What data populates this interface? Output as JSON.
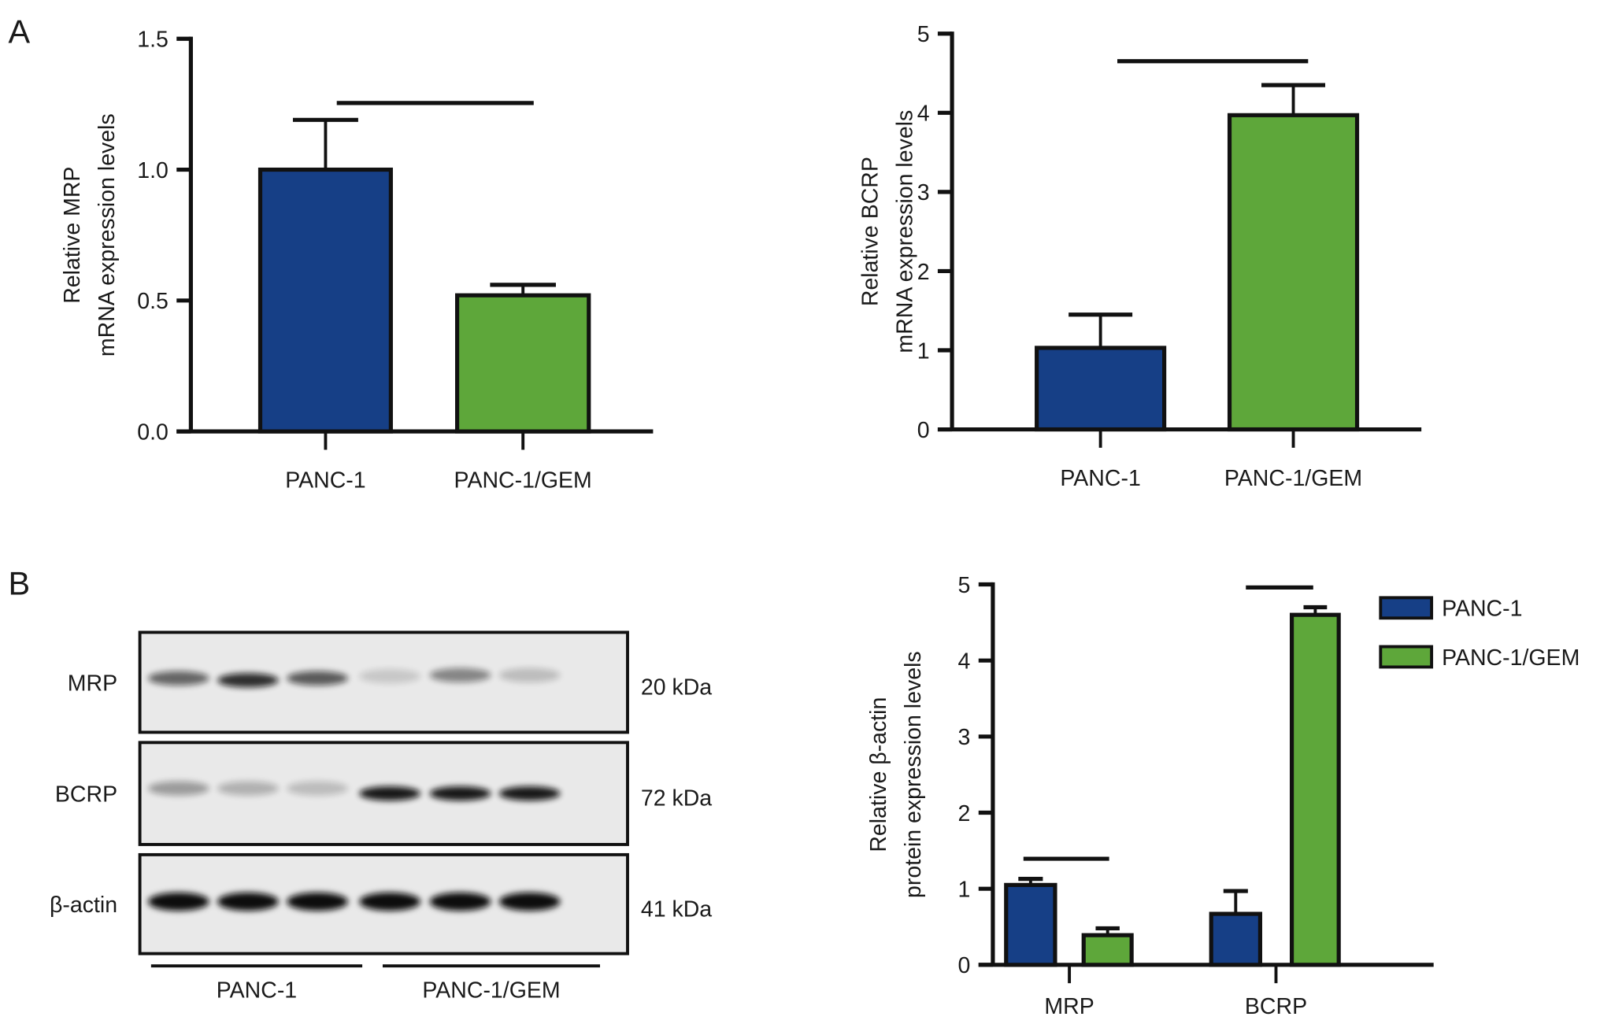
{
  "panel_labels": {
    "a": "A",
    "b": "B"
  },
  "colors": {
    "panc1": "#163f86",
    "gem": "#5ea73a",
    "axis": "#111111"
  },
  "chart_data": [
    {
      "type": "bar",
      "ylabel": [
        "Relative MRP",
        "mRNA expression levels"
      ],
      "categories": [
        "PANC-1",
        "PANC-1/GEM"
      ],
      "values": [
        1.0,
        0.52
      ],
      "error_upper": [
        1.19,
        0.56
      ],
      "yticks": [
        "0.0",
        "0.5",
        "1.0",
        "1.5"
      ],
      "ytick_values": [
        0,
        0.5,
        1.0,
        1.5
      ],
      "ylim": [
        0,
        1.5
      ],
      "significance": [
        {
          "label": "*",
          "between": [
            0,
            1
          ]
        }
      ],
      "grid": false
    },
    {
      "type": "bar",
      "ylabel": [
        "Relative BCRP",
        "mRNA expression levels"
      ],
      "categories": [
        "PANC-1",
        "PANC-1/GEM"
      ],
      "values": [
        1.03,
        3.97
      ],
      "error_upper": [
        1.45,
        4.35
      ],
      "yticks": [
        "0",
        "1",
        "2",
        "3",
        "4",
        "5"
      ],
      "ytick_values": [
        0,
        1,
        2,
        3,
        4,
        5
      ],
      "ylim": [
        0,
        5
      ],
      "significance": [
        {
          "label": "*",
          "between": [
            0,
            1
          ]
        }
      ],
      "grid": false
    },
    {
      "type": "bar",
      "ylabel": [
        "Relative β-actin",
        "protein expression levels"
      ],
      "categories": [
        "MRP",
        "BCRP"
      ],
      "series": [
        {
          "name": "PANC-1",
          "values": [
            1.05,
            0.67
          ],
          "error_upper": [
            1.13,
            0.97
          ]
        },
        {
          "name": "PANC-1/GEM",
          "values": [
            0.39,
            4.6
          ],
          "error_upper": [
            0.48,
            4.7
          ]
        }
      ],
      "yticks": [
        "0",
        "1",
        "2",
        "3",
        "4",
        "5"
      ],
      "ytick_values": [
        0,
        1,
        2,
        3,
        4,
        5
      ],
      "ylim": [
        0,
        5
      ],
      "significance": [
        {
          "label": "*",
          "group": 0
        },
        {
          "label": "*",
          "group": 1
        }
      ],
      "legend": "right",
      "grid": false
    }
  ],
  "blot": {
    "rows": [
      {
        "protein": "MRP",
        "size": "20 kDa"
      },
      {
        "protein": "BCRP",
        "size": "72 kDa"
      },
      {
        "protein": "β-actin",
        "size": "41 kDa"
      }
    ],
    "groups": [
      "PANC-1",
      "PANC-1/GEM"
    ]
  }
}
